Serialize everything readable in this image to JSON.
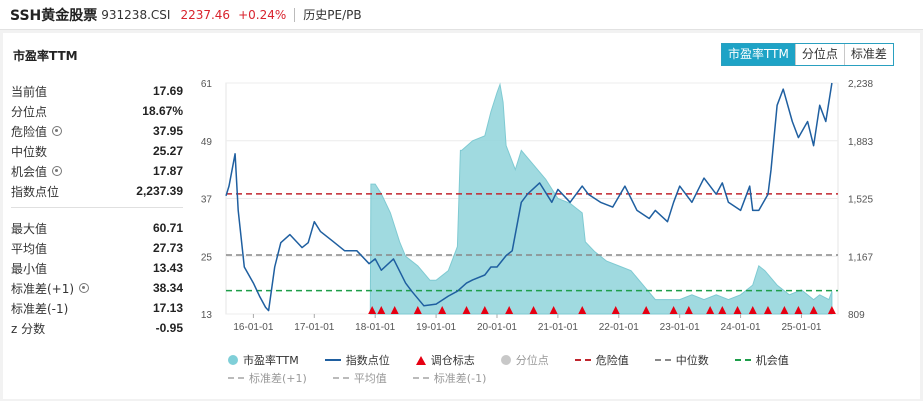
{
  "header": {
    "name": "SSH黄金股票",
    "code": "931238.CSI",
    "price": "2237.46",
    "change": "+0.24%",
    "hist_link": "历史PE/PB"
  },
  "panel": {
    "title": "市盈率TTM",
    "tabs": [
      {
        "label": "市盈率TTM",
        "active": true
      },
      {
        "label": "分位点",
        "active": false
      },
      {
        "label": "标准差",
        "active": false
      }
    ]
  },
  "stats_top": [
    {
      "label": "当前值",
      "value": "17.69",
      "gear": false
    },
    {
      "label": "分位点",
      "value": "18.67%",
      "gear": false
    },
    {
      "label": "危险值",
      "value": "37.95",
      "gear": true
    },
    {
      "label": "中位数",
      "value": "25.27",
      "gear": false
    },
    {
      "label": "机会值",
      "value": "17.87",
      "gear": true
    },
    {
      "label": "指数点位",
      "value": "2,237.39",
      "gear": false
    }
  ],
  "stats_bottom": [
    {
      "label": "最大值",
      "value": "60.71",
      "gear": false
    },
    {
      "label": "平均值",
      "value": "27.73",
      "gear": false
    },
    {
      "label": "最小值",
      "value": "13.43",
      "gear": false
    },
    {
      "label": "标准差(+1)",
      "value": "38.34",
      "gear": true
    },
    {
      "label": "标准差(-1)",
      "value": "17.13",
      "gear": false
    },
    {
      "label": "z 分数",
      "value": "-0.95",
      "gear": false
    }
  ],
  "legend": {
    "row1": [
      {
        "label": "市盈率TTM",
        "kind": "dot",
        "color": "#7fcfd8",
        "muted": false
      },
      {
        "label": "指数点位",
        "kind": "bar",
        "color": "#1f5fa0",
        "muted": false
      },
      {
        "label": "调仓标志",
        "kind": "tri",
        "color": "#e60012",
        "muted": false
      },
      {
        "label": "分位点",
        "kind": "dot",
        "color": "#c8c8c8",
        "muted": true
      },
      {
        "label": "危险值",
        "kind": "dash",
        "color": "#c0262e",
        "muted": false
      },
      {
        "label": "中位数",
        "kind": "dash",
        "color": "#888888",
        "muted": false
      },
      {
        "label": "机会值",
        "kind": "dash",
        "color": "#1e9e4a",
        "muted": false
      }
    ],
    "row2": [
      {
        "label": "标准差(+1)",
        "kind": "dash",
        "color": "#bbbbbb",
        "muted": true
      },
      {
        "label": "平均值",
        "kind": "dash",
        "color": "#bbbbbb",
        "muted": true
      },
      {
        "label": "标准差(-1)",
        "kind": "dash",
        "color": "#bbbbbb",
        "muted": true
      }
    ]
  },
  "chart_data": {
    "type": "area",
    "x_ticks": [
      "16-01-01",
      "17-01-01",
      "18-01-01",
      "19-01-01",
      "20-01-01",
      "21-01-01",
      "22-01-01",
      "23-01-01",
      "24-01-01",
      "25-01-01"
    ],
    "y_left_ticks": [
      "61",
      "49",
      "37",
      "25",
      "13"
    ],
    "y_right_ticks": [
      "2,238",
      "1,883",
      "1,525",
      "1,167",
      "809"
    ],
    "ylim_left": [
      13,
      61
    ],
    "ylim_right": [
      809,
      2238
    ],
    "xlim": [
      2015.55,
      2025.6
    ],
    "ref_lines": {
      "danger": 37.95,
      "median": 25.27,
      "opportunity": 17.87
    },
    "series": [
      {
        "name": "市盈率TTM",
        "axis": "left",
        "x": [
          2017.92,
          2017.93,
          2018.0,
          2018.1,
          2018.25,
          2018.4,
          2018.5,
          2018.7,
          2018.9,
          2019.0,
          2019.2,
          2019.35,
          2019.4,
          2019.42,
          2019.6,
          2019.8,
          2019.9,
          2020.0,
          2020.05,
          2020.1,
          2020.15,
          2020.3,
          2020.4,
          2020.6,
          2020.8,
          2021.0,
          2021.2,
          2021.3,
          2021.4,
          2021.45,
          2021.6,
          2021.8,
          2022.0,
          2022.2,
          2022.4,
          2022.6,
          2022.8,
          2023.0,
          2023.2,
          2023.4,
          2023.6,
          2023.8,
          2024.0,
          2024.2,
          2024.3,
          2024.4,
          2024.6,
          2024.8,
          2025.0,
          2025.2,
          2025.3,
          2025.45,
          2025.5
        ],
        "values": [
          13,
          40,
          40,
          38,
          34,
          28,
          25,
          23,
          20,
          20,
          22,
          27,
          47,
          47,
          49,
          50,
          55,
          59,
          60.7,
          57,
          48,
          43,
          47,
          44,
          41,
          37,
          36,
          35,
          34,
          28,
          26,
          24,
          23,
          22,
          19,
          16,
          16,
          16,
          17,
          16,
          17,
          16,
          17,
          19,
          23,
          22,
          19,
          17,
          18,
          16,
          17,
          16,
          17.7
        ]
      },
      {
        "name": "指数点位",
        "axis": "right",
        "x": [
          2015.55,
          2015.6,
          2015.7,
          2015.75,
          2015.85,
          2016.0,
          2016.1,
          2016.2,
          2016.25,
          2016.35,
          2016.45,
          2016.6,
          2016.8,
          2016.9,
          2017.0,
          2017.1,
          2017.3,
          2017.5,
          2017.7,
          2017.9,
          2018.0,
          2018.1,
          2018.3,
          2018.5,
          2018.6,
          2018.8,
          2019.0,
          2019.2,
          2019.35,
          2019.5,
          2019.6,
          2019.8,
          2019.9,
          2020.0,
          2020.15,
          2020.25,
          2020.4,
          2020.5,
          2020.7,
          2020.9,
          2021.0,
          2021.2,
          2021.4,
          2021.5,
          2021.7,
          2021.9,
          2022.1,
          2022.3,
          2022.5,
          2022.6,
          2022.8,
          2022.9,
          2023.0,
          2023.2,
          2023.4,
          2023.6,
          2023.7,
          2023.8,
          2024.0,
          2024.1,
          2024.15,
          2024.2,
          2024.3,
          2024.45,
          2024.5,
          2024.6,
          2024.7,
          2024.85,
          2024.95,
          2025.1,
          2025.2,
          2025.3,
          2025.4,
          2025.5
        ],
        "values": [
          1540,
          1600,
          1800,
          1450,
          1100,
          1000,
          920,
          850,
          830,
          1100,
          1250,
          1300,
          1220,
          1250,
          1380,
          1320,
          1260,
          1200,
          1200,
          1120,
          1150,
          1080,
          1150,
          1000,
          950,
          860,
          870,
          920,
          950,
          1000,
          1020,
          1050,
          1100,
          1100,
          1170,
          1200,
          1500,
          1550,
          1620,
          1500,
          1580,
          1500,
          1600,
          1550,
          1500,
          1470,
          1600,
          1450,
          1400,
          1450,
          1380,
          1500,
          1600,
          1500,
          1650,
          1550,
          1620,
          1500,
          1450,
          1550,
          1600,
          1450,
          1450,
          1550,
          1700,
          2100,
          2200,
          2000,
          1900,
          2000,
          1850,
          2100,
          2000,
          2238
        ]
      }
    ],
    "markers_x": [
      2017.95,
      2018.1,
      2018.32,
      2018.7,
      2019.1,
      2019.5,
      2019.8,
      2020.2,
      2020.6,
      2020.93,
      2021.4,
      2021.95,
      2022.45,
      2022.9,
      2023.15,
      2023.5,
      2023.7,
      2023.95,
      2024.2,
      2024.45,
      2024.72,
      2024.95,
      2025.2,
      2025.5
    ]
  }
}
